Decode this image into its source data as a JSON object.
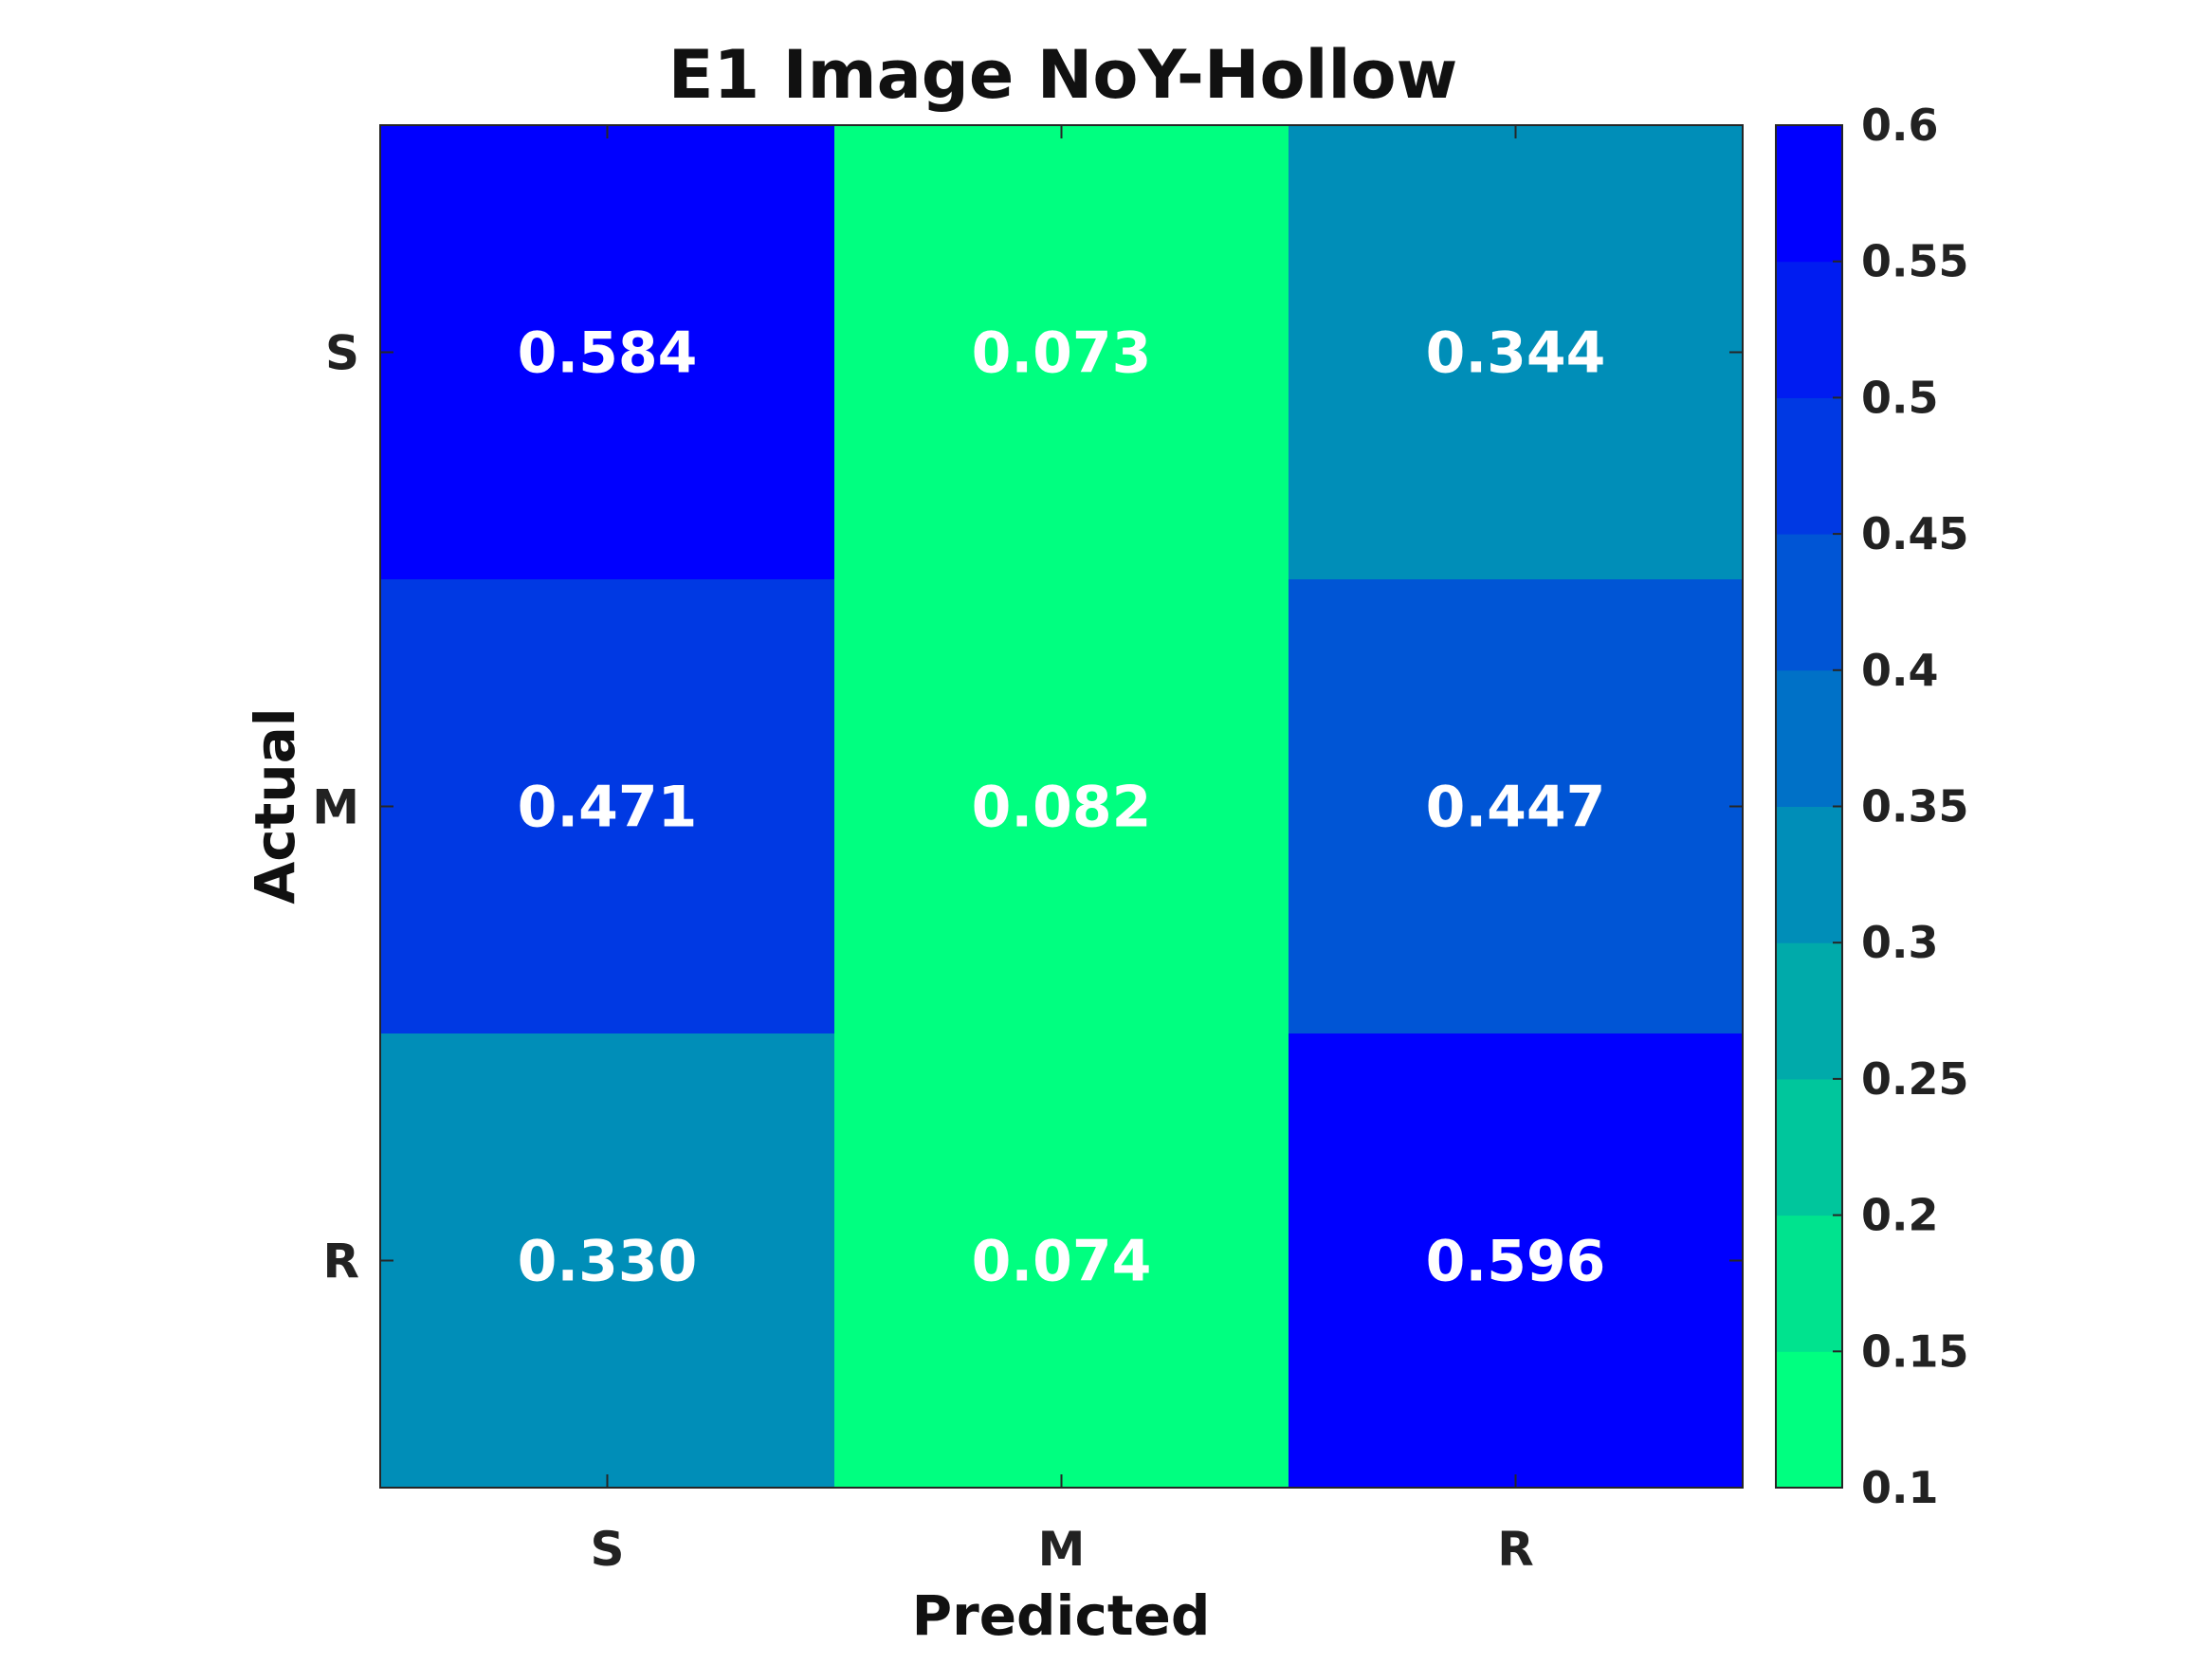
{
  "chart_data": {
    "type": "heatmap",
    "title": "E1 Image NoY-Hollow",
    "xlabel": "Predicted",
    "ylabel": "Actual",
    "x_categories": [
      "S",
      "M",
      "R"
    ],
    "y_categories": [
      "S",
      "M",
      "R"
    ],
    "values": [
      [
        0.584,
        0.073,
        0.344
      ],
      [
        0.471,
        0.082,
        0.447
      ],
      [
        0.33,
        0.074,
        0.596
      ]
    ],
    "value_labels": [
      [
        "0.584",
        "0.073",
        "0.344"
      ],
      [
        "0.471",
        "0.082",
        "0.447"
      ],
      [
        "0.330",
        "0.074",
        "0.596"
      ]
    ],
    "colorbar": {
      "range": [
        0.1,
        0.6
      ],
      "ticks": [
        "0.1",
        "0.15",
        "0.2",
        "0.25",
        "0.3",
        "0.35",
        "0.4",
        "0.45",
        "0.5",
        "0.55",
        "0.6"
      ],
      "levels": 10,
      "color_low": "#00ff80",
      "color_high": "#0000ff"
    },
    "grid": false
  }
}
